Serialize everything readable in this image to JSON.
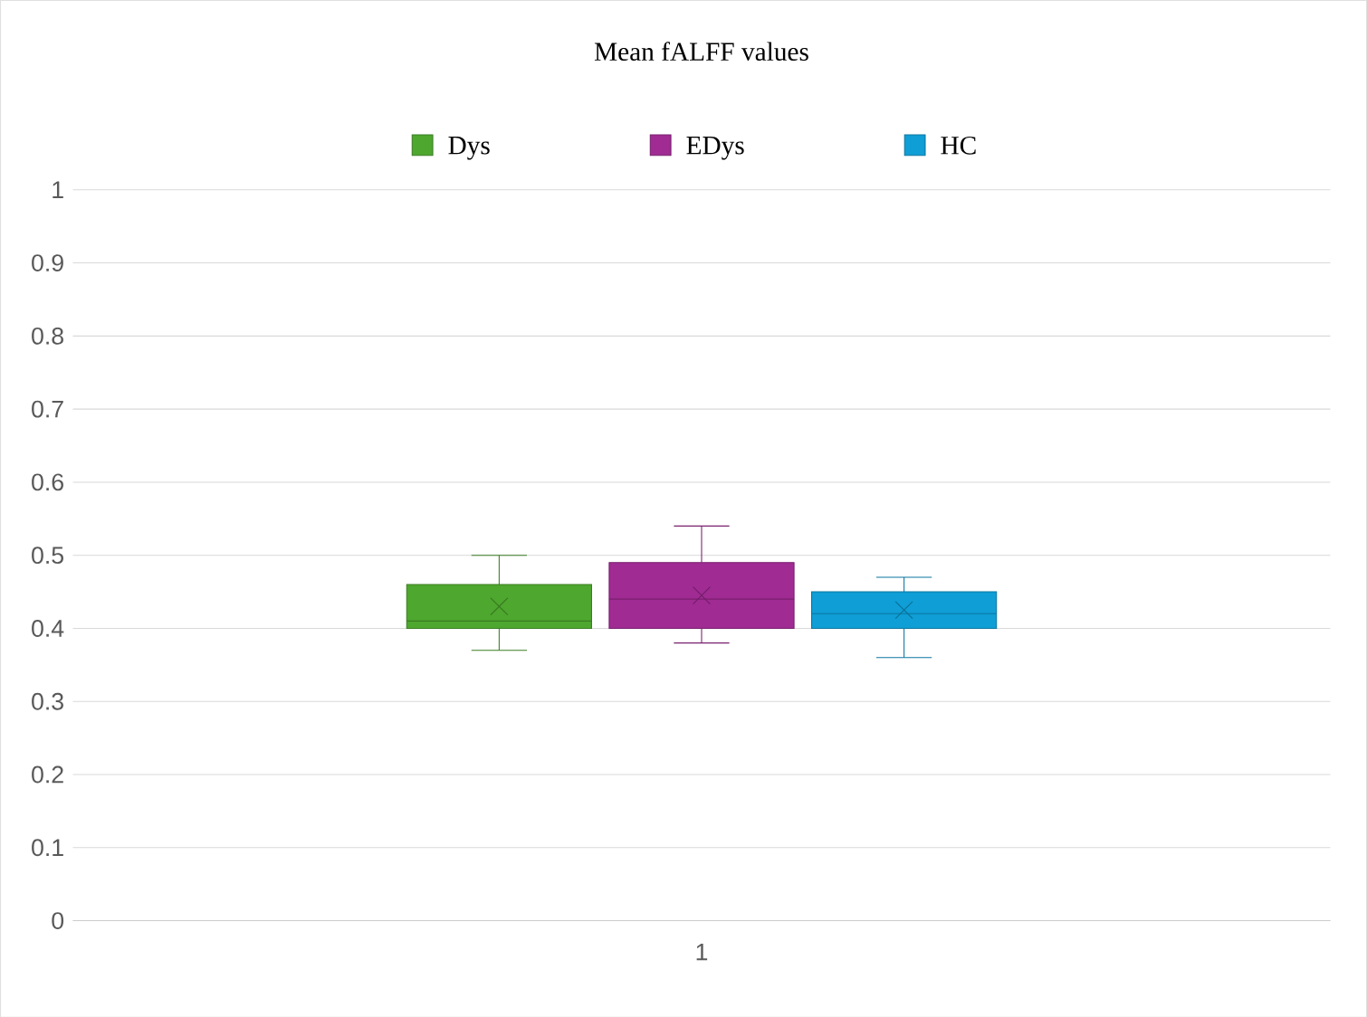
{
  "chart_data": {
    "type": "box",
    "title": "Mean fALFF values",
    "categories": [
      "1"
    ],
    "ylim": [
      0,
      1
    ],
    "yticks": [
      0,
      0.1,
      0.2,
      0.3,
      0.4,
      0.5,
      0.6,
      0.7,
      0.8,
      0.9,
      1
    ],
    "grid": "y",
    "legend": "top",
    "series": [
      {
        "name": "Dys",
        "color": "#4ea72e",
        "boxes": [
          {
            "low": 0.37,
            "q1": 0.4,
            "median": 0.41,
            "q3": 0.46,
            "high": 0.5,
            "mean": 0.43
          }
        ]
      },
      {
        "name": "EDys",
        "color": "#a02b93",
        "boxes": [
          {
            "low": 0.38,
            "q1": 0.4,
            "median": 0.44,
            "q3": 0.49,
            "high": 0.54,
            "mean": 0.445
          }
        ]
      },
      {
        "name": "HC",
        "color": "#0f9ed5",
        "boxes": [
          {
            "low": 0.36,
            "q1": 0.4,
            "median": 0.42,
            "q3": 0.45,
            "high": 0.47,
            "mean": 0.425
          }
        ]
      }
    ]
  }
}
